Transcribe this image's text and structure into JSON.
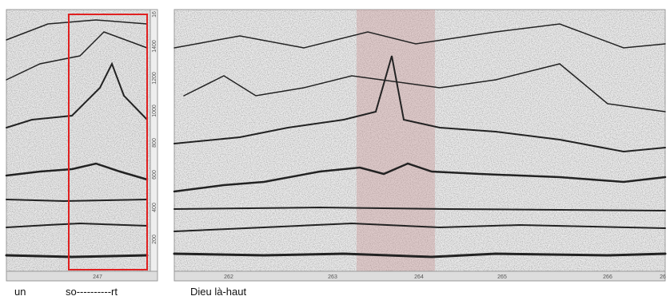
{
  "left_panel": {
    "y_ticks": [
      "200",
      "400",
      "600",
      "800",
      "1000",
      "1200",
      "1400",
      "16"
    ],
    "x_ticks": [
      "247"
    ]
  },
  "right_panel": {
    "x_ticks": [
      "262",
      "263",
      "264",
      "265",
      "266",
      "26"
    ]
  },
  "lyrics": [
    "un",
    "so----------rt",
    "Dieu là-haut"
  ]
}
